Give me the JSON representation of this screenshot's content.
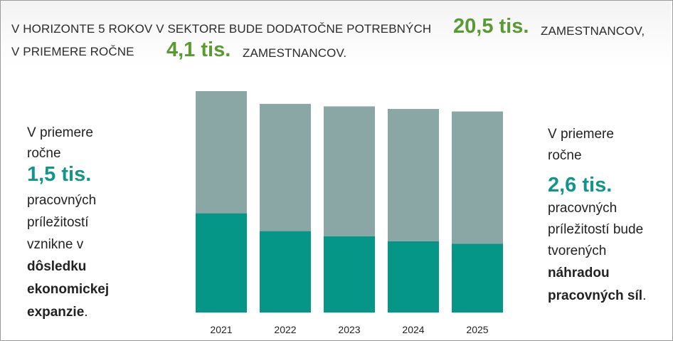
{
  "header": {
    "line1_text": "V HORIZONTE 5 ROKOV V SEKTORE BUDE DODATOČNE POTREBNÝCH",
    "line1_value": "20,5 tis.",
    "line1_suffix": "ZAMESTNANCOV,",
    "line2_text": "V PRIEMERE ROČNE",
    "line2_value": "4,1 tis.",
    "line2_suffix": "ZAMESTNANCOV."
  },
  "left_panel": {
    "line1": "V priemere",
    "line2": "ročne",
    "value": "1,5 tis.",
    "line3": "pracovných",
    "line4": "príležitostí",
    "line5": "vznikne v",
    "bold1": "dôsledku",
    "bold2": "ekonomickej",
    "bold3": "expanzie",
    "end": "."
  },
  "right_panel": {
    "line1": "V priemere",
    "line2": "ročne",
    "value": "2,6 tis.",
    "line3": "pracovných",
    "line4": "príležitostí bude",
    "line5": "tvorených",
    "bold1": "náhradou",
    "bold2": "pracovných síl",
    "end": "."
  },
  "colors": {
    "expansion": "#069688",
    "replacement": "#8aa6a5",
    "accent_green": "#5a9a32",
    "accent_teal": "#13958a"
  },
  "chart_data": {
    "type": "bar",
    "stacked": true,
    "categories": [
      "2021",
      "2022",
      "2023",
      "2024",
      "2025"
    ],
    "series": [
      {
        "name": "Expanzia",
        "values": [
          1.95,
          1.6,
          1.5,
          1.4,
          1.35
        ]
      },
      {
        "name": "Náhrada",
        "values": [
          2.4,
          2.5,
          2.55,
          2.6,
          2.6
        ]
      }
    ],
    "ylim": [
      0,
      4.35
    ],
    "title": "",
    "xlabel": "",
    "ylabel": ""
  }
}
